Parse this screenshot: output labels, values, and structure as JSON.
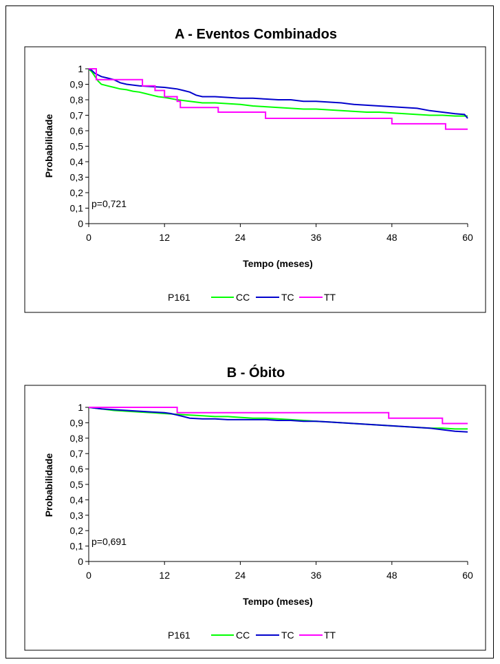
{
  "chart_data": [
    {
      "type": "line",
      "title": "A - Eventos Combinados",
      "xlabel": "Tempo (meses)",
      "ylabel": "Probabilidade",
      "xlim": [
        0,
        60
      ],
      "ylim": [
        0,
        1
      ],
      "x_ticks": [
        "0",
        "12",
        "24",
        "36",
        "48",
        "60"
      ],
      "y_ticks": [
        "0",
        "0,1",
        "0,2",
        "0,3",
        "0,4",
        "0,5",
        "0,6",
        "0,7",
        "0,8",
        "0,9",
        "1"
      ],
      "annotation": "p=0,721",
      "legend_title": "P161",
      "legend_position": "bottom",
      "grid": false,
      "series": [
        {
          "name": "CC",
          "color": "#00ff00",
          "x": [
            0,
            0.5,
            1,
            1.5,
            2,
            3,
            4,
            5,
            6,
            7,
            8,
            9,
            10,
            11,
            12,
            14,
            16,
            18,
            20,
            22,
            24,
            26,
            28,
            30,
            32,
            34,
            36,
            38,
            40,
            42,
            44,
            46,
            48,
            50,
            52,
            54,
            56,
            58,
            60
          ],
          "y": [
            1.0,
            0.98,
            0.95,
            0.92,
            0.9,
            0.89,
            0.88,
            0.87,
            0.865,
            0.855,
            0.85,
            0.84,
            0.83,
            0.82,
            0.815,
            0.8,
            0.79,
            0.78,
            0.78,
            0.775,
            0.77,
            0.76,
            0.755,
            0.75,
            0.745,
            0.74,
            0.74,
            0.735,
            0.73,
            0.725,
            0.72,
            0.72,
            0.715,
            0.71,
            0.705,
            0.7,
            0.7,
            0.695,
            0.695
          ]
        },
        {
          "name": "TC",
          "color": "#0000cc",
          "x": [
            0,
            0.5,
            1,
            1.5,
            2,
            3,
            4,
            5,
            6,
            8,
            10,
            12,
            14,
            15,
            16,
            17,
            18,
            20,
            22,
            24,
            26,
            28,
            30,
            32,
            34,
            36,
            38,
            40,
            42,
            44,
            46,
            48,
            50,
            52,
            54,
            56,
            58,
            59.5,
            60
          ],
          "y": [
            1.0,
            0.99,
            0.97,
            0.96,
            0.95,
            0.94,
            0.93,
            0.91,
            0.9,
            0.89,
            0.885,
            0.88,
            0.87,
            0.86,
            0.85,
            0.83,
            0.82,
            0.82,
            0.815,
            0.81,
            0.81,
            0.805,
            0.8,
            0.8,
            0.79,
            0.79,
            0.785,
            0.78,
            0.77,
            0.765,
            0.76,
            0.755,
            0.75,
            0.745,
            0.73,
            0.72,
            0.71,
            0.705,
            0.68
          ]
        },
        {
          "name": "TT",
          "color": "#ff00ff",
          "x": [
            0,
            1.2,
            1.2,
            3,
            3,
            8.5,
            8.5,
            10.5,
            10.5,
            12,
            12,
            14,
            14,
            14.5,
            14.5,
            20.5,
            20.5,
            28,
            28,
            48,
            48,
            56.5,
            56.5,
            60
          ],
          "y": [
            1.0,
            1.0,
            0.93,
            0.93,
            0.93,
            0.93,
            0.89,
            0.89,
            0.86,
            0.86,
            0.82,
            0.82,
            0.79,
            0.79,
            0.75,
            0.75,
            0.72,
            0.72,
            0.68,
            0.68,
            0.645,
            0.645,
            0.61,
            0.61
          ],
          "step": true
        }
      ]
    },
    {
      "type": "line",
      "title": "B - Óbito",
      "xlabel": "Tempo (meses)",
      "ylabel": "Probabilidade",
      "xlim": [
        0,
        60
      ],
      "ylim": [
        0,
        1
      ],
      "x_ticks": [
        "0",
        "12",
        "24",
        "36",
        "48",
        "60"
      ],
      "y_ticks": [
        "0",
        "0,1",
        "0,2",
        "0,3",
        "0,4",
        "0,5",
        "0,6",
        "0,7",
        "0,8",
        "0,9",
        "1"
      ],
      "annotation": "p=0,691",
      "legend_title": "P161",
      "legend_position": "bottom",
      "grid": false,
      "series": [
        {
          "name": "CC",
          "color": "#00ff00",
          "x": [
            0,
            2,
            4,
            6,
            8,
            10,
            12,
            14,
            16,
            18,
            20,
            22,
            24,
            26,
            28,
            30,
            32,
            34,
            36,
            38,
            40,
            42,
            44,
            46,
            48,
            50,
            52,
            54,
            56,
            58,
            60
          ],
          "y": [
            1.0,
            0.99,
            0.98,
            0.975,
            0.97,
            0.965,
            0.96,
            0.955,
            0.95,
            0.945,
            0.94,
            0.94,
            0.935,
            0.93,
            0.93,
            0.925,
            0.92,
            0.915,
            0.91,
            0.905,
            0.9,
            0.895,
            0.89,
            0.885,
            0.88,
            0.875,
            0.87,
            0.865,
            0.865,
            0.86,
            0.86
          ]
        },
        {
          "name": "TC",
          "color": "#0000cc",
          "x": [
            0,
            2,
            4,
            6,
            8,
            10,
            12,
            13,
            14,
            15,
            16,
            18,
            20,
            22,
            24,
            26,
            28,
            30,
            32,
            34,
            36,
            38,
            40,
            42,
            44,
            46,
            48,
            50,
            52,
            54,
            56,
            58,
            60
          ],
          "y": [
            1.0,
            0.99,
            0.985,
            0.98,
            0.975,
            0.97,
            0.965,
            0.96,
            0.95,
            0.94,
            0.93,
            0.925,
            0.925,
            0.92,
            0.92,
            0.92,
            0.92,
            0.915,
            0.915,
            0.91,
            0.91,
            0.905,
            0.9,
            0.895,
            0.89,
            0.885,
            0.88,
            0.875,
            0.87,
            0.865,
            0.855,
            0.845,
            0.84
          ]
        },
        {
          "name": "TT",
          "color": "#ff00ff",
          "x": [
            0,
            14,
            14,
            47.5,
            47.5,
            56,
            56,
            60
          ],
          "y": [
            1.0,
            1.0,
            0.965,
            0.965,
            0.93,
            0.93,
            0.895,
            0.895
          ],
          "step": true
        }
      ]
    }
  ]
}
